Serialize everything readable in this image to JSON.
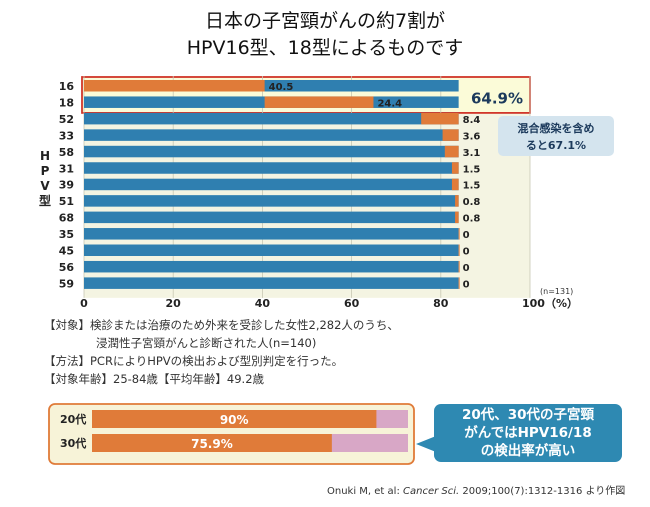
{
  "title_line1": "日本の子宮頸がんの約7割が",
  "title_line2": "HPV16型、18型によるものです",
  "colors": {
    "bar": "#e07b39",
    "bar_remainder": "#2f7fb0",
    "highlight_border": "#d1362a",
    "highlight_fill": "#fbfbd8",
    "callout_fill": "#d4e4ee",
    "age_remainder": "#d8a7c6"
  },
  "chart_data": [
    {
      "type": "bar",
      "orientation": "horizontal",
      "stacked": true,
      "ylabel": "HPV型",
      "categories": [
        "16",
        "18",
        "52",
        "33",
        "58",
        "31",
        "39",
        "51",
        "68",
        "35",
        "45",
        "56",
        "59"
      ],
      "series": [
        {
          "values": [
            40.5,
            24.4,
            8.4,
            3.6,
            3.1,
            1.5,
            1.5,
            0.8,
            0.8,
            0,
            0,
            0,
            0
          ]
        }
      ],
      "value_labels": [
        "40.5",
        "24.4",
        "8.4",
        "3.6",
        "3.1",
        "1.5",
        "1.5",
        "0.8",
        "0.8",
        "0",
        "0",
        "0",
        "0"
      ],
      "xlim": [
        0,
        100
      ],
      "x_ticks": [
        "0",
        "20",
        "40",
        "60",
        "80",
        "100（%）"
      ],
      "sample_size": "(n=131)",
      "highlight_label": "64.9%",
      "callout": {
        "line1": "混合感染を含め",
        "line2": "ると67.1%"
      }
    },
    {
      "type": "bar",
      "orientation": "horizontal",
      "categories": [
        "20代",
        "30代"
      ],
      "values": [
        90,
        75.9
      ],
      "value_labels": [
        "90%",
        "75.9%"
      ]
    }
  ],
  "notes": {
    "line1": "【対象】検診または治療のため外来を受診した女性2,282人のうち、",
    "line2": "浸潤性子宮頸がんと診断された人(n=140)",
    "line3": "【方法】PCRによりHPVの検出および型別判定を行った。",
    "line4": "【対象年齢】25-84歳【平均年齢】49.2歳"
  },
  "age_callout": {
    "line1": "20代、30代の子宮頸",
    "line2": "がんではHPV16/18",
    "line3": "の検出率が高い"
  },
  "citation": {
    "authors": "Onuki M, et al: ",
    "journal": "Cancer Sci.",
    "rest": " 2009;100(7):1312-1316 より作図"
  }
}
